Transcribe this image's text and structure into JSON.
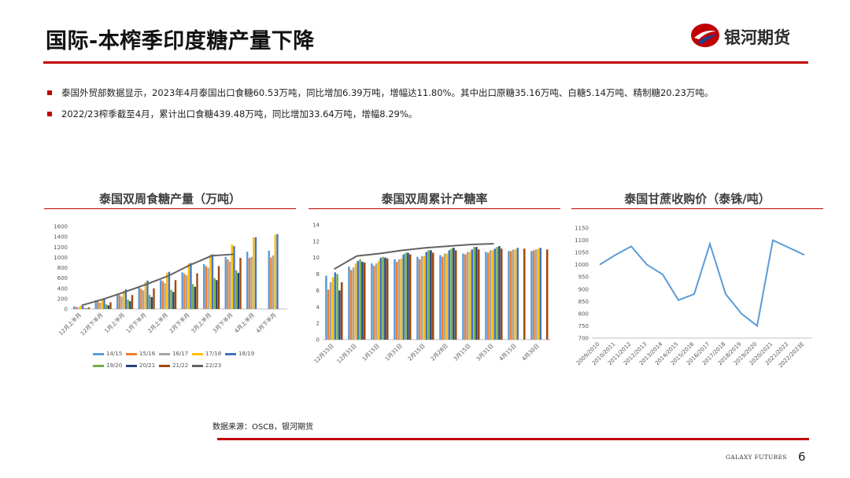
{
  "header": {
    "title": "国际-本榨季印度糖产量下降",
    "logo_text": "银河期货"
  },
  "bullets": [
    "泰国外贸部数据显示，2023年4月泰国出口食糖60.53万吨，同比增加6.39万吨，增幅达11.80%。其中出口原糖35.16万吨、白糖5.14万吨、精制糖20.23万吨。",
    "2022/23榨季截至4月，累计出口食糖439.48万吨，同比增加33.64万吨，增幅8.29%。"
  ],
  "colors": {
    "accent": "#c00000",
    "series": [
      "#5b9bd5",
      "#ed7d31",
      "#a5a5a5",
      "#ffc000",
      "#4472c4",
      "#70ad47",
      "#264478",
      "#9e480e",
      "#636363"
    ]
  },
  "chart_data": [
    {
      "type": "bar",
      "title": "泰国双周食糖产量（万吨）",
      "categories": [
        "12月上半月",
        "12月下半月",
        "1月上半月",
        "1月下半月",
        "2月上半月",
        "2月下半月",
        "3月上半月",
        "3月下半月",
        "4月上半月",
        "4月下半月"
      ],
      "ylim": [
        0,
        1600
      ],
      "yticks": [
        0,
        200,
        400,
        600,
        800,
        1000,
        1200,
        1400,
        1600
      ],
      "series": [
        {
          "name": "14/15",
          "values": [
            50,
            170,
            300,
            420,
            560,
            710,
            870,
            1010,
            1110,
            1130
          ]
        },
        {
          "name": "15/16",
          "values": [
            40,
            150,
            270,
            390,
            540,
            680,
            830,
            960,
            990,
            1000
          ]
        },
        {
          "name": "16/17",
          "values": [
            30,
            120,
            240,
            360,
            500,
            650,
            800,
            920,
            1010,
            1040
          ]
        },
        {
          "name": "17/18",
          "values": [
            60,
            200,
            350,
            520,
            700,
            880,
            1050,
            1250,
            1390,
            1440
          ]
        },
        {
          "name": "18/19",
          "values": [
            60,
            210,
            380,
            550,
            720,
            890,
            1060,
            1220,
            1390,
            1450
          ]
        },
        {
          "name": "19/20",
          "values": [
            20,
            90,
            180,
            270,
            370,
            480,
            600,
            750,
            null,
            null
          ]
        },
        {
          "name": "20/21",
          "values": [
            10,
            70,
            150,
            230,
            330,
            430,
            560,
            700,
            null,
            null
          ]
        },
        {
          "name": "21/22",
          "values": [
            30,
            130,
            270,
            400,
            560,
            690,
            830,
            990,
            null,
            null
          ]
        },
        {
          "name": "22/23",
          "type": "line",
          "values": [
            70,
            190,
            330,
            480,
            640,
            850,
            1030,
            1060,
            null,
            null
          ]
        }
      ]
    },
    {
      "type": "bar",
      "title": "泰国双周累计产糖率",
      "categories": [
        "12月15日",
        "12月31日",
        "1月15日",
        "1月31日",
        "2月15日",
        "2月28日",
        "3月15日",
        "3月31日",
        "4月15日",
        "4月30日"
      ],
      "ylim": [
        0,
        14
      ],
      "yticks": [
        0,
        2,
        4,
        6,
        8,
        10,
        12,
        14
      ],
      "series": [
        {
          "name": "14/15",
          "values": [
            7.8,
            8.9,
            9.3,
            9.8,
            10.1,
            10.3,
            10.5,
            10.7,
            10.8,
            10.8
          ]
        },
        {
          "name": "15/16",
          "values": [
            6.1,
            8.5,
            9.0,
            9.5,
            9.8,
            10.1,
            10.4,
            10.6,
            10.8,
            10.9
          ]
        },
        {
          "name": "16/17",
          "values": [
            7.0,
            8.8,
            9.3,
            9.8,
            10.2,
            10.5,
            10.7,
            10.9,
            11.0,
            11.0
          ]
        },
        {
          "name": "17/18",
          "values": [
            7.6,
            9.3,
            9.6,
            9.9,
            10.2,
            10.5,
            10.7,
            10.9,
            11.0,
            11.1
          ]
        },
        {
          "name": "18/19",
          "values": [
            8.2,
            9.6,
            10.0,
            10.4,
            10.7,
            10.9,
            11.0,
            11.1,
            11.2,
            11.2
          ]
        },
        {
          "name": "19/20",
          "values": [
            8.0,
            9.8,
            10.1,
            10.6,
            10.9,
            11.1,
            11.3,
            11.3,
            null,
            null
          ]
        },
        {
          "name": "20/21",
          "values": [
            6.0,
            9.5,
            10.0,
            10.6,
            10.9,
            11.2,
            11.3,
            11.4,
            null,
            null
          ]
        },
        {
          "name": "21/22",
          "values": [
            7.0,
            9.4,
            9.9,
            10.4,
            10.6,
            10.9,
            11.0,
            11.1,
            11.1,
            11.0
          ]
        },
        {
          "name": "22/23",
          "type": "line",
          "values": [
            8.6,
            10.2,
            10.5,
            10.9,
            11.2,
            11.4,
            11.6,
            11.7,
            null,
            null
          ]
        }
      ]
    },
    {
      "type": "line",
      "title": "泰国甘蔗收购价（泰铢/吨）",
      "categories": [
        "2009/2010",
        "2010/2011",
        "2011/2012",
        "2012/2013",
        "2013/2014",
        "2014/2015",
        "2015/2016",
        "2016/2017",
        "2017/2018",
        "2018/2019",
        "2019/2020",
        "2020/2021",
        "2021/2022",
        "2022/2023E"
      ],
      "ylim": [
        700,
        1150
      ],
      "yticks": [
        700,
        750,
        800,
        850,
        900,
        950,
        1000,
        1050,
        1100,
        1150
      ],
      "series": [
        {
          "values": [
            1000,
            1040,
            1075,
            1000,
            960,
            855,
            880,
            1085,
            880,
            800,
            750,
            1100,
            1070,
            1040
          ]
        }
      ]
    }
  ],
  "source": "数据来源：OSCB，银河期货",
  "footer": {
    "brand": "GALAXY FUTURES",
    "page": "6"
  }
}
